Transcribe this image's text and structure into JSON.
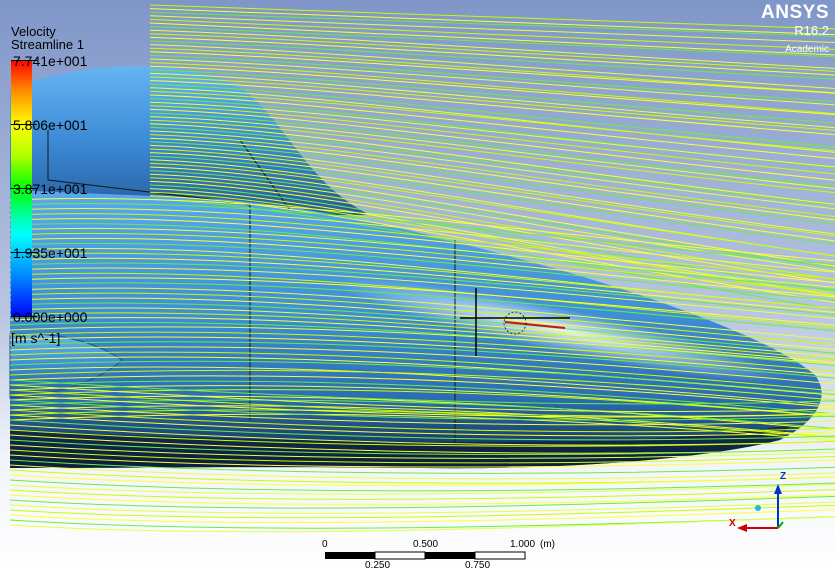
{
  "legend": {
    "title": "Velocity",
    "subtitle": "Streamline 1",
    "ticks": [
      "7.741e+001",
      "5.806e+001",
      "3.871e+001",
      "1.935e+001",
      "0.000e+000"
    ],
    "units": "[m s^-1]",
    "colors": [
      "#ff0000",
      "#ffff00",
      "#00ff00",
      "#00ffff",
      "#0000ff"
    ]
  },
  "logo": {
    "brand": "ANSYS",
    "version": "R16.2",
    "license": "Academic"
  },
  "scale_bar": {
    "top_labels": [
      "0",
      "0.500",
      "1.000"
    ],
    "unit": "(m)",
    "bottom_labels": [
      "0.250",
      "0.750"
    ]
  },
  "triad": {
    "x_label": "X",
    "z_label": "Z",
    "x_color": "#cc0000",
    "z_color": "#0033cc",
    "y_color": "#00aa00"
  },
  "scene": {
    "background_top": "#7f96c8",
    "background_bottom": "#ffffff",
    "body_color": "#3f8ed8",
    "streamline_colors": [
      "#c8ff00",
      "#ffff33",
      "#66ee44",
      "#e8ff40"
    ]
  }
}
